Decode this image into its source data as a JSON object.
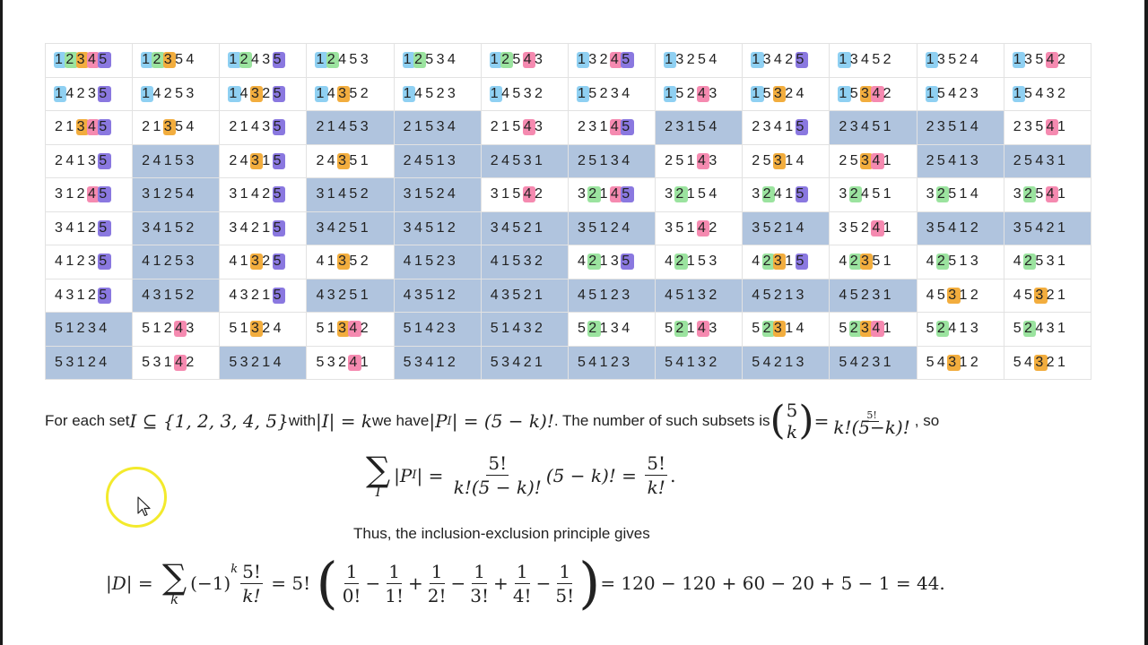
{
  "colors": {
    "1": "#8fd0f2",
    "2": "#9be39f",
    "3": "#f2ad3e",
    "4": "#f58ab0",
    "5": "#8a78e0",
    "shade": "#b0c4de"
  },
  "table": [
    [
      {
        "p": "12345",
        "h": [
          1,
          2,
          3,
          4,
          5
        ],
        "b": false
      },
      {
        "p": "12354",
        "h": [
          1,
          2,
          3
        ],
        "b": false
      },
      {
        "p": "12435",
        "h": [
          1,
          2,
          5
        ],
        "b": false
      },
      {
        "p": "12453",
        "h": [
          1,
          2
        ],
        "b": false
      },
      {
        "p": "12534",
        "h": [
          1,
          2
        ],
        "b": false
      },
      {
        "p": "12543",
        "h": [
          1,
          2,
          4
        ],
        "b": false
      },
      {
        "p": "13245",
        "h": [
          1,
          4,
          5
        ],
        "b": false
      },
      {
        "p": "13254",
        "h": [
          1
        ],
        "b": false
      },
      {
        "p": "13425",
        "h": [
          1,
          5
        ],
        "b": false
      },
      {
        "p": "13452",
        "h": [
          1
        ],
        "b": false
      },
      {
        "p": "13524",
        "h": [
          1
        ],
        "b": false
      },
      {
        "p": "13542",
        "h": [
          1,
          4
        ],
        "b": false
      }
    ],
    [
      {
        "p": "14235",
        "h": [
          1,
          5
        ],
        "b": false
      },
      {
        "p": "14253",
        "h": [
          1
        ],
        "b": false
      },
      {
        "p": "14325",
        "h": [
          1,
          3,
          5
        ],
        "b": false
      },
      {
        "p": "14352",
        "h": [
          1,
          3
        ],
        "b": false
      },
      {
        "p": "14523",
        "h": [
          1
        ],
        "b": false
      },
      {
        "p": "14532",
        "h": [
          1
        ],
        "b": false
      },
      {
        "p": "15234",
        "h": [
          1
        ],
        "b": false
      },
      {
        "p": "15243",
        "h": [
          1,
          4
        ],
        "b": false
      },
      {
        "p": "15324",
        "h": [
          1,
          3
        ],
        "b": false
      },
      {
        "p": "15342",
        "h": [
          1,
          3,
          4
        ],
        "b": false
      },
      {
        "p": "15423",
        "h": [
          1
        ],
        "b": false
      },
      {
        "p": "15432",
        "h": [
          1
        ],
        "b": false
      }
    ],
    [
      {
        "p": "21345",
        "h": [
          3,
          4,
          5
        ],
        "b": false
      },
      {
        "p": "21354",
        "h": [
          3
        ],
        "b": false
      },
      {
        "p": "21435",
        "h": [
          5
        ],
        "b": false
      },
      {
        "p": "21453",
        "h": [],
        "b": true
      },
      {
        "p": "21534",
        "h": [],
        "b": true
      },
      {
        "p": "21543",
        "h": [
          4
        ],
        "b": false
      },
      {
        "p": "23145",
        "h": [
          4,
          5
        ],
        "b": false
      },
      {
        "p": "23154",
        "h": [],
        "b": true
      },
      {
        "p": "23415",
        "h": [
          5
        ],
        "b": false
      },
      {
        "p": "23451",
        "h": [],
        "b": true
      },
      {
        "p": "23514",
        "h": [],
        "b": true
      },
      {
        "p": "23541",
        "h": [
          4
        ],
        "b": false
      }
    ],
    [
      {
        "p": "24135",
        "h": [
          5
        ],
        "b": false
      },
      {
        "p": "24153",
        "h": [],
        "b": true
      },
      {
        "p": "24315",
        "h": [
          3,
          5
        ],
        "b": false
      },
      {
        "p": "24351",
        "h": [
          3
        ],
        "b": false
      },
      {
        "p": "24513",
        "h": [],
        "b": true
      },
      {
        "p": "24531",
        "h": [],
        "b": true
      },
      {
        "p": "25134",
        "h": [],
        "b": true
      },
      {
        "p": "25143",
        "h": [
          4
        ],
        "b": false
      },
      {
        "p": "25314",
        "h": [
          3
        ],
        "b": false
      },
      {
        "p": "25341",
        "h": [
          3,
          4
        ],
        "b": false
      },
      {
        "p": "25413",
        "h": [],
        "b": true
      },
      {
        "p": "25431",
        "h": [],
        "b": true
      }
    ],
    [
      {
        "p": "31245",
        "h": [
          4,
          5
        ],
        "b": false
      },
      {
        "p": "31254",
        "h": [],
        "b": true
      },
      {
        "p": "31425",
        "h": [
          5
        ],
        "b": false
      },
      {
        "p": "31452",
        "h": [],
        "b": true
      },
      {
        "p": "31524",
        "h": [],
        "b": true
      },
      {
        "p": "31542",
        "h": [
          4
        ],
        "b": false
      },
      {
        "p": "32145",
        "h": [
          2,
          4,
          5
        ],
        "b": false
      },
      {
        "p": "32154",
        "h": [
          2
        ],
        "b": false
      },
      {
        "p": "32415",
        "h": [
          2,
          5
        ],
        "b": false
      },
      {
        "p": "32451",
        "h": [
          2
        ],
        "b": false
      },
      {
        "p": "32514",
        "h": [
          2
        ],
        "b": false
      },
      {
        "p": "32541",
        "h": [
          2,
          4
        ],
        "b": false
      }
    ],
    [
      {
        "p": "34125",
        "h": [
          5
        ],
        "b": false
      },
      {
        "p": "34152",
        "h": [],
        "b": true
      },
      {
        "p": "34215",
        "h": [
          5
        ],
        "b": false
      },
      {
        "p": "34251",
        "h": [],
        "b": true
      },
      {
        "p": "34512",
        "h": [],
        "b": true
      },
      {
        "p": "34521",
        "h": [],
        "b": true
      },
      {
        "p": "35124",
        "h": [],
        "b": true
      },
      {
        "p": "35142",
        "h": [
          4
        ],
        "b": false
      },
      {
        "p": "35214",
        "h": [],
        "b": true
      },
      {
        "p": "35241",
        "h": [
          4
        ],
        "b": false
      },
      {
        "p": "35412",
        "h": [],
        "b": true
      },
      {
        "p": "35421",
        "h": [],
        "b": true
      }
    ],
    [
      {
        "p": "41235",
        "h": [
          5
        ],
        "b": false
      },
      {
        "p": "41253",
        "h": [],
        "b": true
      },
      {
        "p": "41325",
        "h": [
          3,
          5
        ],
        "b": false
      },
      {
        "p": "41352",
        "h": [
          3
        ],
        "b": false
      },
      {
        "p": "41523",
        "h": [],
        "b": true
      },
      {
        "p": "41532",
        "h": [],
        "b": true
      },
      {
        "p": "42135",
        "h": [
          2,
          5
        ],
        "b": false
      },
      {
        "p": "42153",
        "h": [
          2
        ],
        "b": false
      },
      {
        "p": "42315",
        "h": [
          2,
          3,
          5
        ],
        "b": false
      },
      {
        "p": "42351",
        "h": [
          2,
          3
        ],
        "b": false
      },
      {
        "p": "42513",
        "h": [
          2
        ],
        "b": false
      },
      {
        "p": "42531",
        "h": [
          2
        ],
        "b": false
      }
    ],
    [
      {
        "p": "43125",
        "h": [
          5
        ],
        "b": false
      },
      {
        "p": "43152",
        "h": [],
        "b": true
      },
      {
        "p": "43215",
        "h": [
          5
        ],
        "b": false
      },
      {
        "p": "43251",
        "h": [],
        "b": true
      },
      {
        "p": "43512",
        "h": [],
        "b": true
      },
      {
        "p": "43521",
        "h": [],
        "b": true
      },
      {
        "p": "45123",
        "h": [],
        "b": true
      },
      {
        "p": "45132",
        "h": [],
        "b": true
      },
      {
        "p": "45213",
        "h": [],
        "b": true
      },
      {
        "p": "45231",
        "h": [],
        "b": true
      },
      {
        "p": "45312",
        "h": [
          3
        ],
        "b": false
      },
      {
        "p": "45321",
        "h": [
          3
        ],
        "b": false
      }
    ],
    [
      {
        "p": "51234",
        "h": [],
        "b": true
      },
      {
        "p": "51243",
        "h": [
          4
        ],
        "b": false
      },
      {
        "p": "51324",
        "h": [
          3
        ],
        "b": false
      },
      {
        "p": "51342",
        "h": [
          3,
          4
        ],
        "b": false
      },
      {
        "p": "51423",
        "h": [],
        "b": true
      },
      {
        "p": "51432",
        "h": [],
        "b": true
      },
      {
        "p": "52134",
        "h": [
          2
        ],
        "b": false
      },
      {
        "p": "52143",
        "h": [
          2,
          4
        ],
        "b": false
      },
      {
        "p": "52314",
        "h": [
          2,
          3
        ],
        "b": false
      },
      {
        "p": "52341",
        "h": [
          2,
          3,
          4
        ],
        "b": false
      },
      {
        "p": "52413",
        "h": [
          2
        ],
        "b": false
      },
      {
        "p": "52431",
        "h": [
          2
        ],
        "b": false
      }
    ],
    [
      {
        "p": "53124",
        "h": [],
        "b": true
      },
      {
        "p": "53142",
        "h": [
          4
        ],
        "b": false
      },
      {
        "p": "53214",
        "h": [],
        "b": true
      },
      {
        "p": "53241",
        "h": [
          4
        ],
        "b": false
      },
      {
        "p": "53412",
        "h": [],
        "b": true
      },
      {
        "p": "53421",
        "h": [],
        "b": true
      },
      {
        "p": "54123",
        "h": [],
        "b": true
      },
      {
        "p": "54132",
        "h": [],
        "b": true
      },
      {
        "p": "54213",
        "h": [],
        "b": true
      },
      {
        "p": "54231",
        "h": [],
        "b": true
      },
      {
        "p": "54312",
        "h": [
          3
        ],
        "b": false
      },
      {
        "p": "54321",
        "h": [
          3
        ],
        "b": false
      }
    ]
  ],
  "text": {
    "line1_a": "For each set ",
    "line1_set": "I ⊆ {1, 2, 3, 4, 5}",
    "line1_b": " with ",
    "line1_card": "|I| = k",
    "line1_c": " we have ",
    "line1_pi": "|P",
    "line1_pi_sub": "I",
    "line1_pi_rest": "| = (5 − k)!",
    "line1_d": ". The number of such subsets is ",
    "binom_top": "5",
    "binom_bot": "k",
    "eq_sign": " = ",
    "frac1_num": "5!",
    "frac1_den": "k!(5−k)!",
    "line1_e": ", so",
    "caption": "Thus, the inclusion-exclusion principle gives",
    "final_result": " = 120 − 120 + 60 − 20 + 5 − 1 = 44."
  },
  "icons": {
    "cursor": "arrow-pointer-icon",
    "highlight": "cursor-highlight-ring"
  }
}
